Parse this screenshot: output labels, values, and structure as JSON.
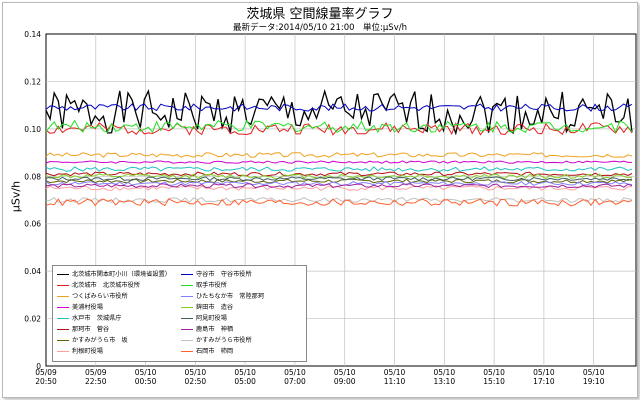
{
  "colors": {
    "grid": "#c0c0c0",
    "axis": "#000000",
    "background": "#ffffff"
  },
  "chart_data": {
    "type": "line",
    "title": "茨城県 空間線量率グラフ",
    "subtitle": "最新データ:2014/05/10 21:00　単位:μSv/h",
    "ylabel": "μSv/h",
    "xlabel": "",
    "ylim": [
      0,
      0.14
    ],
    "yticks": [
      "0",
      "0.02",
      "0.04",
      "0.06",
      "0.08",
      "0.10",
      "0.12",
      "0.14"
    ],
    "grid": true,
    "legend_position": "bottom-left",
    "x_ticks": [
      {
        "date": "05/09",
        "time": "20:50"
      },
      {
        "date": "05/09",
        "time": "22:50"
      },
      {
        "date": "05/10",
        "time": "00:50"
      },
      {
        "date": "05/10",
        "time": "02:50"
      },
      {
        "date": "05/10",
        "time": "05:00"
      },
      {
        "date": "05/10",
        "time": "07:00"
      },
      {
        "date": "05/10",
        "time": "09:00"
      },
      {
        "date": "05/10",
        "time": "11:10"
      },
      {
        "date": "05/10",
        "time": "13:10"
      },
      {
        "date": "05/10",
        "time": "15:10"
      },
      {
        "date": "05/10",
        "time": "17:10"
      },
      {
        "date": "05/10",
        "time": "19:10"
      }
    ],
    "series": [
      {
        "name": "北茨城市関本町小川（環境省設置）",
        "color": "#000000",
        "base": 0.107,
        "amp": 0.009,
        "seed": 1
      },
      {
        "name": "北茨城市　北茨城市役所",
        "color": "#e02020",
        "base": 0.1,
        "amp": 0.0025,
        "seed": 2
      },
      {
        "name": "つくばみらい市役所",
        "color": "#f0a020",
        "base": 0.089,
        "amp": 0.001,
        "seed": 3
      },
      {
        "name": "美浦村役場",
        "color": "#d000d0",
        "base": 0.086,
        "amp": 0.0005,
        "seed": 4
      },
      {
        "name": "水戸市　茨城県庁",
        "color": "#20c0c0",
        "base": 0.083,
        "amp": 0.001,
        "seed": 5
      },
      {
        "name": "那珂市　菅谷",
        "color": "#b01010",
        "base": 0.081,
        "amp": 0.0008,
        "seed": 6
      },
      {
        "name": "かすみがうら市　坂",
        "color": "#606000",
        "base": 0.078,
        "amp": 0.0008,
        "seed": 7
      },
      {
        "name": "利根町役場",
        "color": "#ffa0a0",
        "base": 0.075,
        "amp": 0.001,
        "seed": 8
      },
      {
        "name": "守谷市　守谷市役所",
        "color": "#0000c0",
        "base": 0.109,
        "amp": 0.0015,
        "seed": 9
      },
      {
        "name": "取手市役所",
        "color": "#20e020",
        "base": 0.101,
        "amp": 0.0025,
        "seed": 10
      },
      {
        "name": "ひたちなか市　常陸那珂",
        "color": "#8080ff",
        "base": 0.077,
        "amp": 0.0008,
        "seed": 11
      },
      {
        "name": "鉾田市　造谷",
        "color": "#80d020",
        "base": 0.08,
        "amp": 0.001,
        "seed": 12
      },
      {
        "name": "阿見町役場",
        "color": "#406060",
        "base": 0.079,
        "amp": 0.0008,
        "seed": 13
      },
      {
        "name": "鹿島市　神栖",
        "color": "#a020a0",
        "base": 0.076,
        "amp": 0.0008,
        "seed": 14
      },
      {
        "name": "かすみがうら市役所",
        "color": "#c0c0c0",
        "base": 0.07,
        "amp": 0.001,
        "seed": 15
      },
      {
        "name": "石岡市　柿岡",
        "color": "#ff6030",
        "base": 0.069,
        "amp": 0.0015,
        "seed": 16
      }
    ]
  }
}
